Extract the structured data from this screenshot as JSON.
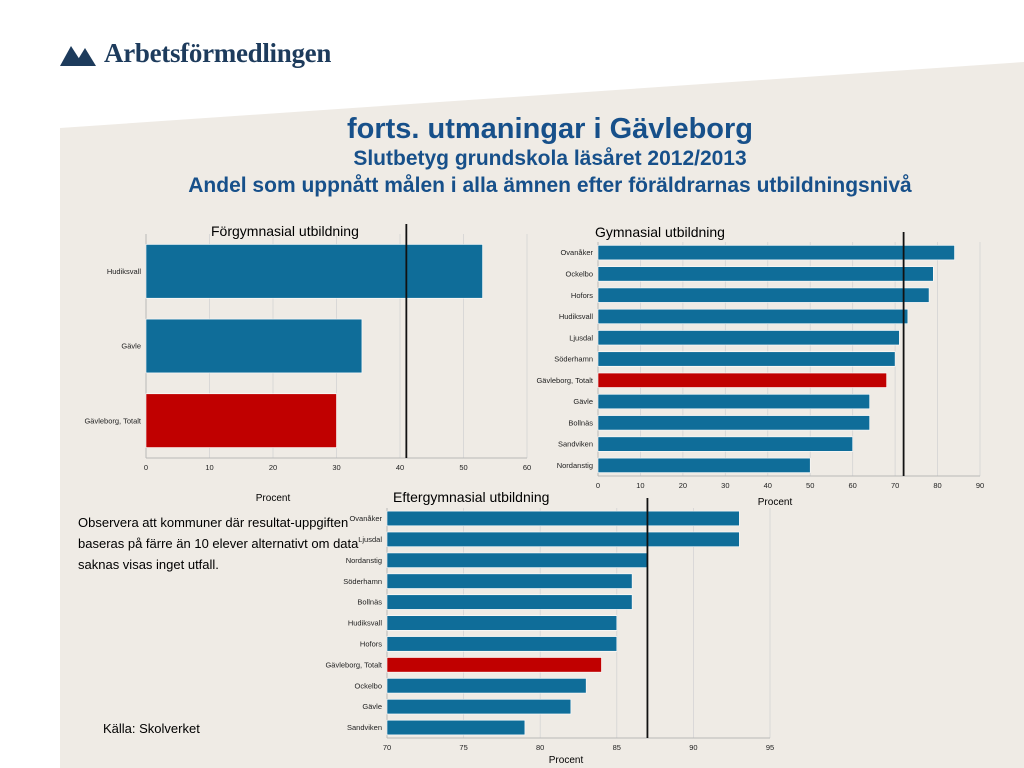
{
  "colors": {
    "bar": "#0f6d99",
    "highlight": "#c00000",
    "title": "#17508a",
    "logo": "#1d3b5c",
    "panel": "#efebe5"
  },
  "logo": {
    "text": "Arbetsförmedlingen",
    "icon": "arbetsformedlingen-logo-icon"
  },
  "title": {
    "line1": "forts. utmaningar i Gävleborg",
    "line2": "Slutbetyg grundskola läsåret 2012/2013",
    "line3": "Andel som uppnått målen i alla ämnen efter föräldrarnas utbildningsnivå"
  },
  "note": "Observera att kommuner där resultat-uppgiften baseras på färre än 10 elever alternativt om data saknas visas inget utfall.",
  "source": "Källa: Skolverket",
  "chart_data": [
    {
      "type": "bar",
      "orientation": "horizontal",
      "title": "Förgymnasial utbildning",
      "xlabel": "Procent",
      "categories": [
        "Hudiksvall",
        "Gävle",
        "Gävleborg, Totalt"
      ],
      "values": [
        53,
        34,
        30
      ],
      "highlight": "Gävleborg, Totalt",
      "reference_line": 41,
      "xlim": [
        0,
        60
      ],
      "ticks": [
        0,
        10,
        20,
        30,
        40,
        50,
        60
      ],
      "grid": true
    },
    {
      "type": "bar",
      "orientation": "horizontal",
      "title": "Gymnasial utbildning",
      "xlabel": "Procent",
      "categories": [
        "Ovanåker",
        "Ockelbo",
        "Hofors",
        "Hudiksvall",
        "Ljusdal",
        "Söderhamn",
        "Gävleborg, Totalt",
        "Gävle",
        "Bollnäs",
        "Sandviken",
        "Nordanstig"
      ],
      "values": [
        84,
        79,
        78,
        73,
        71,
        70,
        68,
        64,
        64,
        60,
        50
      ],
      "highlight": "Gävleborg, Totalt",
      "reference_line": 72,
      "xlim": [
        0,
        90
      ],
      "ticks": [
        0,
        10,
        20,
        30,
        40,
        50,
        60,
        70,
        80,
        90
      ],
      "grid": true
    },
    {
      "type": "bar",
      "orientation": "horizontal",
      "title": "Eftergymnasial utbildning",
      "xlabel": "Procent",
      "categories": [
        "Ovanåker",
        "Ljusdal",
        "Nordanstig",
        "Söderhamn",
        "Bollnäs",
        "Hudiksvall",
        "Hofors",
        "Gävleborg, Totalt",
        "Ockelbo",
        "Gävle",
        "Sandviken"
      ],
      "values": [
        93,
        93,
        87,
        86,
        86,
        85,
        85,
        84,
        83,
        82,
        79
      ],
      "highlight": "Gävleborg, Totalt",
      "reference_line": 87,
      "xlim": [
        70,
        95
      ],
      "ticks": [
        70,
        75,
        80,
        85,
        90,
        95
      ],
      "grid": true
    }
  ]
}
